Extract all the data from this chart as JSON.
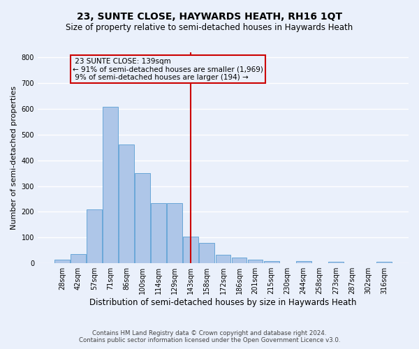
{
  "title": "23, SUNTE CLOSE, HAYWARDS HEATH, RH16 1QT",
  "subtitle": "Size of property relative to semi-detached houses in Haywards Heath",
  "xlabel": "Distribution of semi-detached houses by size in Haywards Heath",
  "ylabel": "Number of semi-detached properties",
  "footnote1": "Contains HM Land Registry data © Crown copyright and database right 2024.",
  "footnote2": "Contains public sector information licensed under the Open Government Licence v3.0.",
  "bar_labels": [
    "28sqm",
    "42sqm",
    "57sqm",
    "71sqm",
    "86sqm",
    "100sqm",
    "114sqm",
    "129sqm",
    "143sqm",
    "158sqm",
    "172sqm",
    "186sqm",
    "201sqm",
    "215sqm",
    "230sqm",
    "244sqm",
    "258sqm",
    "273sqm",
    "287sqm",
    "302sqm",
    "316sqm"
  ],
  "bar_values": [
    15,
    37,
    210,
    608,
    462,
    350,
    233,
    233,
    103,
    78,
    33,
    22,
    15,
    10,
    0,
    8,
    0,
    5,
    0,
    0,
    5
  ],
  "bar_color": "#aec6e8",
  "bar_edge_color": "#5a9fd4",
  "vline_x_index": 8,
  "highlight_line_label": "23 SUNTE CLOSE: 139sqm",
  "highlight_pct_smaller_arrow": "← 91% of semi-detached houses are smaller (1,969)",
  "highlight_pct_larger": "9% of semi-detached houses are larger (194) →",
  "ylim": [
    0,
    820
  ],
  "yticks": [
    0,
    100,
    200,
    300,
    400,
    500,
    600,
    700,
    800
  ],
  "bg_color": "#eaf0fb",
  "grid_color": "#ffffff",
  "annotation_box_color": "#cc0000",
  "vline_color": "#cc0000",
  "title_fontsize": 10,
  "subtitle_fontsize": 8.5,
  "tick_fontsize": 7,
  "ylabel_fontsize": 8,
  "xlabel_fontsize": 8.5,
  "footnote_fontsize": 6.2
}
